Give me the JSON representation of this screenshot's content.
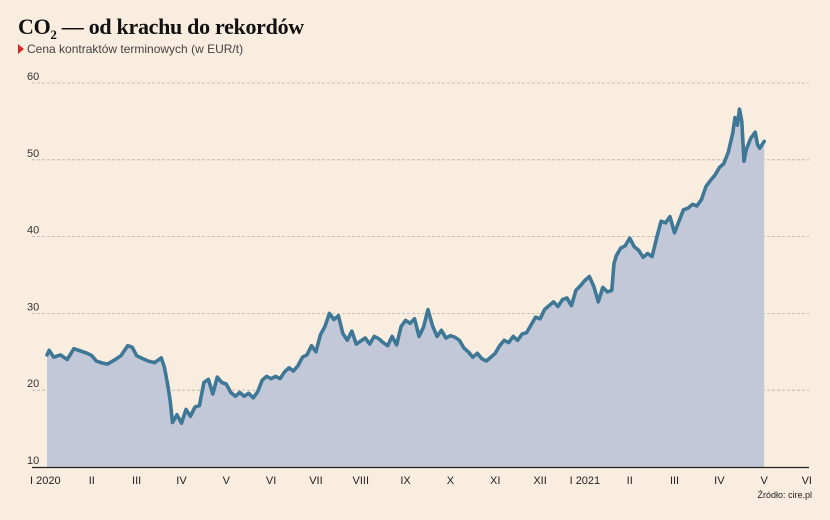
{
  "header": {
    "title_main": "CO",
    "title_sub": "2",
    "title_rest": " — od krachu do rekordów",
    "subtitle": "Cena kontraktów terminowych (w EUR/t)",
    "source": "Źródło: cire.pl"
  },
  "colors": {
    "line": "#3f7896",
    "area": "#c2c8d7",
    "grid": "#b9b2a8",
    "marker": "#d62b2b"
  },
  "chart_data": {
    "type": "area",
    "title": "CO₂ — od krachu do rekordów",
    "subtitle": "Cena kontraktów terminowych (w EUR/t)",
    "ylim": [
      10,
      60
    ],
    "yticks": [
      10,
      20,
      30,
      40,
      50,
      60
    ],
    "grid": true,
    "x_tick_labels": [
      "I 2020",
      "II",
      "III",
      "IV",
      "V",
      "VI",
      "VII",
      "VIII",
      "IX",
      "X",
      "XI",
      "XII",
      "I 2021",
      "II",
      "III",
      "IV",
      "V",
      "VI"
    ],
    "x_unit": "month index (0 = January 2020)",
    "xlim": [
      0,
      17
    ],
    "series": [
      {
        "values": [
          [
            0.0,
            24.6
          ],
          [
            0.05,
            25.2
          ],
          [
            0.15,
            24.3
          ],
          [
            0.3,
            24.6
          ],
          [
            0.45,
            24.0
          ],
          [
            0.6,
            25.4
          ],
          [
            0.75,
            25.1
          ],
          [
            0.9,
            24.8
          ],
          [
            1.0,
            24.5
          ],
          [
            1.1,
            23.8
          ],
          [
            1.2,
            23.6
          ],
          [
            1.35,
            23.4
          ],
          [
            1.5,
            23.9
          ],
          [
            1.65,
            24.5
          ],
          [
            1.8,
            25.8
          ],
          [
            1.9,
            25.6
          ],
          [
            2.0,
            24.5
          ],
          [
            2.1,
            24.2
          ],
          [
            2.25,
            23.8
          ],
          [
            2.4,
            23.6
          ],
          [
            2.55,
            24.2
          ],
          [
            2.62,
            23.0
          ],
          [
            2.7,
            20.5
          ],
          [
            2.75,
            18.5
          ],
          [
            2.8,
            15.8
          ],
          [
            2.9,
            16.8
          ],
          [
            3.0,
            15.7
          ],
          [
            3.1,
            17.5
          ],
          [
            3.2,
            16.6
          ],
          [
            3.3,
            17.8
          ],
          [
            3.4,
            18.0
          ],
          [
            3.5,
            21.0
          ],
          [
            3.6,
            21.4
          ],
          [
            3.7,
            19.5
          ],
          [
            3.8,
            21.7
          ],
          [
            3.9,
            21.0
          ],
          [
            4.0,
            20.8
          ],
          [
            4.1,
            19.7
          ],
          [
            4.2,
            19.2
          ],
          [
            4.3,
            19.7
          ],
          [
            4.4,
            19.2
          ],
          [
            4.5,
            19.6
          ],
          [
            4.6,
            19.0
          ],
          [
            4.7,
            19.8
          ],
          [
            4.8,
            21.3
          ],
          [
            4.9,
            21.8
          ],
          [
            5.0,
            21.5
          ],
          [
            5.1,
            21.8
          ],
          [
            5.2,
            21.5
          ],
          [
            5.3,
            22.4
          ],
          [
            5.4,
            22.9
          ],
          [
            5.5,
            22.5
          ],
          [
            5.6,
            23.2
          ],
          [
            5.7,
            24.3
          ],
          [
            5.8,
            24.6
          ],
          [
            5.9,
            25.8
          ],
          [
            6.0,
            25.0
          ],
          [
            6.1,
            27.2
          ],
          [
            6.2,
            28.3
          ],
          [
            6.3,
            30.0
          ],
          [
            6.4,
            29.2
          ],
          [
            6.5,
            29.7
          ],
          [
            6.6,
            27.4
          ],
          [
            6.7,
            26.5
          ],
          [
            6.8,
            27.7
          ],
          [
            6.9,
            26.0
          ],
          [
            7.0,
            26.4
          ],
          [
            7.1,
            26.8
          ],
          [
            7.2,
            26.0
          ],
          [
            7.3,
            27.0
          ],
          [
            7.4,
            26.7
          ],
          [
            7.5,
            26.2
          ],
          [
            7.6,
            25.8
          ],
          [
            7.7,
            27.0
          ],
          [
            7.8,
            25.9
          ],
          [
            7.9,
            28.3
          ],
          [
            8.0,
            29.1
          ],
          [
            8.1,
            28.7
          ],
          [
            8.2,
            29.3
          ],
          [
            8.3,
            27.0
          ],
          [
            8.4,
            28.2
          ],
          [
            8.5,
            30.5
          ],
          [
            8.6,
            28.4
          ],
          [
            8.7,
            27.0
          ],
          [
            8.8,
            27.8
          ],
          [
            8.9,
            26.8
          ],
          [
            9.0,
            27.1
          ],
          [
            9.1,
            26.9
          ],
          [
            9.2,
            26.5
          ],
          [
            9.3,
            25.5
          ],
          [
            9.4,
            25.0
          ],
          [
            9.5,
            24.3
          ],
          [
            9.6,
            24.8
          ],
          [
            9.7,
            24.1
          ],
          [
            9.8,
            23.8
          ],
          [
            9.9,
            24.3
          ],
          [
            10.0,
            24.8
          ],
          [
            10.1,
            25.8
          ],
          [
            10.2,
            26.5
          ],
          [
            10.3,
            26.2
          ],
          [
            10.4,
            27.0
          ],
          [
            10.5,
            26.5
          ],
          [
            10.6,
            27.3
          ],
          [
            10.7,
            27.5
          ],
          [
            10.8,
            28.5
          ],
          [
            10.9,
            29.5
          ],
          [
            11.0,
            29.3
          ],
          [
            11.1,
            30.5
          ],
          [
            11.2,
            31.0
          ],
          [
            11.3,
            31.5
          ],
          [
            11.4,
            30.9
          ],
          [
            11.5,
            31.8
          ],
          [
            11.6,
            32.0
          ],
          [
            11.7,
            31.0
          ],
          [
            11.8,
            33.0
          ],
          [
            11.9,
            33.6
          ],
          [
            12.0,
            34.3
          ],
          [
            12.1,
            34.8
          ],
          [
            12.2,
            33.5
          ],
          [
            12.3,
            31.5
          ],
          [
            12.4,
            33.4
          ],
          [
            12.5,
            32.8
          ],
          [
            12.6,
            33.0
          ],
          [
            12.65,
            36.5
          ],
          [
            12.7,
            37.5
          ],
          [
            12.8,
            38.5
          ],
          [
            12.9,
            38.8
          ],
          [
            13.0,
            39.8
          ],
          [
            13.1,
            38.7
          ],
          [
            13.2,
            38.2
          ],
          [
            13.3,
            37.3
          ],
          [
            13.4,
            37.8
          ],
          [
            13.5,
            37.4
          ],
          [
            13.6,
            39.8
          ],
          [
            13.7,
            42.0
          ],
          [
            13.8,
            41.8
          ],
          [
            13.9,
            42.6
          ],
          [
            14.0,
            40.5
          ],
          [
            14.1,
            42.0
          ],
          [
            14.2,
            43.5
          ],
          [
            14.3,
            43.7
          ],
          [
            14.4,
            44.2
          ],
          [
            14.5,
            44.0
          ],
          [
            14.6,
            44.8
          ],
          [
            14.7,
            46.5
          ],
          [
            14.8,
            47.3
          ],
          [
            14.9,
            48.0
          ],
          [
            15.0,
            49.0
          ],
          [
            15.1,
            49.5
          ],
          [
            15.2,
            51.0
          ],
          [
            15.3,
            53.5
          ],
          [
            15.35,
            55.5
          ],
          [
            15.4,
            54.5
          ],
          [
            15.45,
            56.6
          ],
          [
            15.5,
            55.0
          ],
          [
            15.55,
            49.8
          ],
          [
            15.6,
            51.3
          ],
          [
            15.7,
            52.8
          ],
          [
            15.8,
            53.6
          ],
          [
            15.85,
            52.0
          ],
          [
            15.9,
            51.5
          ],
          [
            16.0,
            52.4
          ]
        ]
      }
    ]
  }
}
